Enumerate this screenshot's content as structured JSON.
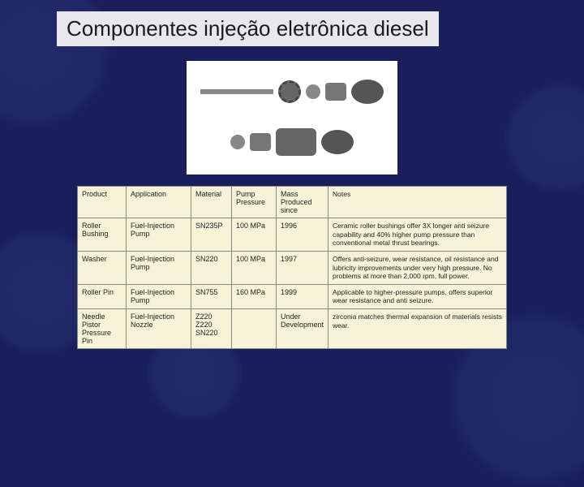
{
  "title": "Componentes injeção eletrônica diesel",
  "table": {
    "headers": {
      "product": "Product",
      "application": "Application",
      "material": "Material",
      "pump_pressure": "Pump Pressure",
      "mass_produced": "Mass Produced since",
      "notes": "Notes"
    },
    "rows": [
      {
        "product": "Roller Bushing",
        "application": "Fuel-Injection Pump",
        "material": "SN235P",
        "pump_pressure": "100 MPa",
        "mass_produced": "1996",
        "notes": "Ceramic roller bushings offer 3X longer anti seizure capability and 40% higher pump pressure than conventional metal thrust bearings."
      },
      {
        "product": "Washer",
        "application": "Fuel-Injection Pump",
        "material": "SN220",
        "pump_pressure": "100 MPa",
        "mass_produced": "1997",
        "notes": "Offers anti-seizure, wear resistance, oil resistance and lubricity improvements under very high pressure. No problems at more than 2,000 rpm, full power."
      },
      {
        "product": "Roller Pin",
        "application": "Fuel-Injection Pump",
        "material": "SN755",
        "pump_pressure": "160 MPa",
        "mass_produced": "1999",
        "notes": "Applicable to higher-pressure pumps, offers superior wear resistance and anti seizure."
      },
      {
        "product": "Needle Pistor Pressure Pin",
        "application": "Fuel-Injection Nozzle",
        "material": "Z220 Z220 SN220",
        "pump_pressure": "",
        "mass_produced": "Under Development",
        "notes": "zirconia matches thermal expansion of materials resists wear."
      }
    ]
  },
  "colors": {
    "slide_bg": "#1a1f5c",
    "title_bg": "#e8e8ec",
    "title_text": "#1a1a1a",
    "table_bg": "#f5f3d8",
    "table_border": "#888888"
  }
}
